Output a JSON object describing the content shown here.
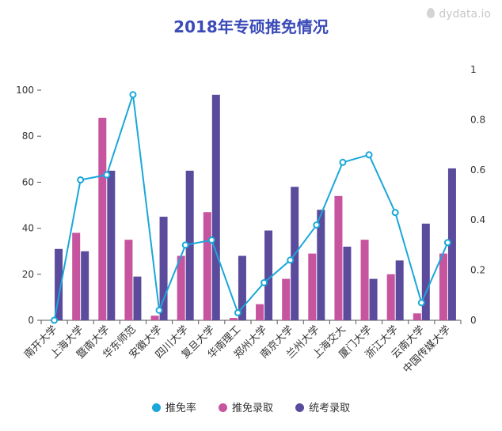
{
  "watermark": "dydata.io",
  "chart_data": {
    "type": "bar",
    "title": "2018年专硕推免情况",
    "categories": [
      "南开大学",
      "上海大学",
      "暨南大学",
      "华东师范",
      "安徽大学",
      "四川大学",
      "复旦大学",
      "华南理工",
      "郑州大学",
      "南京大学",
      "兰州大学",
      "上海交大",
      "厦门大学",
      "浙江大学",
      "云南大学",
      "中国传媒大学"
    ],
    "series": [
      {
        "name": "推免录取",
        "type": "bar",
        "axis": "left",
        "color": "#c6549e",
        "values": [
          0,
          38,
          88,
          35,
          2,
          28,
          47,
          1,
          7,
          18,
          29,
          54,
          35,
          20,
          3,
          29
        ]
      },
      {
        "name": "统考录取",
        "type": "bar",
        "axis": "left",
        "color": "#5a4b9d",
        "values": [
          31,
          30,
          65,
          19,
          45,
          65,
          98,
          28,
          39,
          58,
          48,
          32,
          18,
          26,
          42,
          66
        ]
      },
      {
        "name": "推免率",
        "type": "line",
        "axis": "right",
        "color": "#1aa7d9",
        "values": [
          0,
          0.56,
          0.58,
          0.9,
          0.04,
          0.3,
          0.32,
          0.03,
          0.15,
          0.24,
          0.38,
          0.63,
          0.66,
          0.43,
          0.07,
          0.31
        ]
      }
    ],
    "ylim_left": [
      0,
      100
    ],
    "ylim_right": [
      0,
      1
    ],
    "yticks_left": [
      "0",
      "20",
      "40",
      "60",
      "80",
      "100"
    ],
    "yticks_right": [
      "0",
      "0.2",
      "0.4",
      "0.6",
      "0.8",
      "1"
    ],
    "legend": [
      "推免率",
      "推免录取",
      "统考录取"
    ],
    "legend_position": "bottom-center",
    "grid": false
  }
}
